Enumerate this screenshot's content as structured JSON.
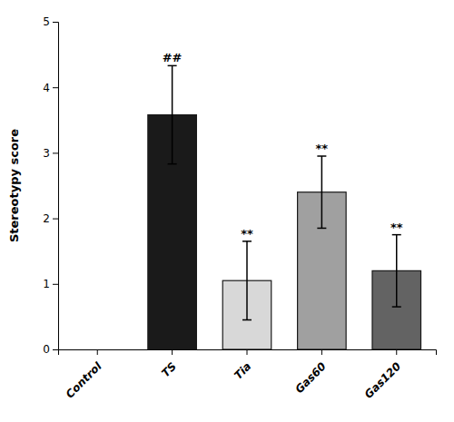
{
  "chart_data": {
    "type": "bar",
    "categories": [
      "Control",
      "TS",
      "Tia",
      "Gas60",
      "Gas120"
    ],
    "values": [
      0.0,
      3.58,
      1.05,
      2.4,
      1.2
    ],
    "errors": [
      0.0,
      0.75,
      0.6,
      0.55,
      0.55
    ],
    "colors": [
      "#ffffff",
      "#1a1a1a",
      "#d8d8d8",
      "#a0a0a0",
      "#636363"
    ],
    "annotations": [
      null,
      "##",
      "**",
      "**",
      "**"
    ],
    "ylabel": "Stereotypy score",
    "ylim": [
      0,
      5
    ],
    "yticks": [
      0,
      1,
      2,
      3,
      4,
      5
    ],
    "grid": false
  }
}
